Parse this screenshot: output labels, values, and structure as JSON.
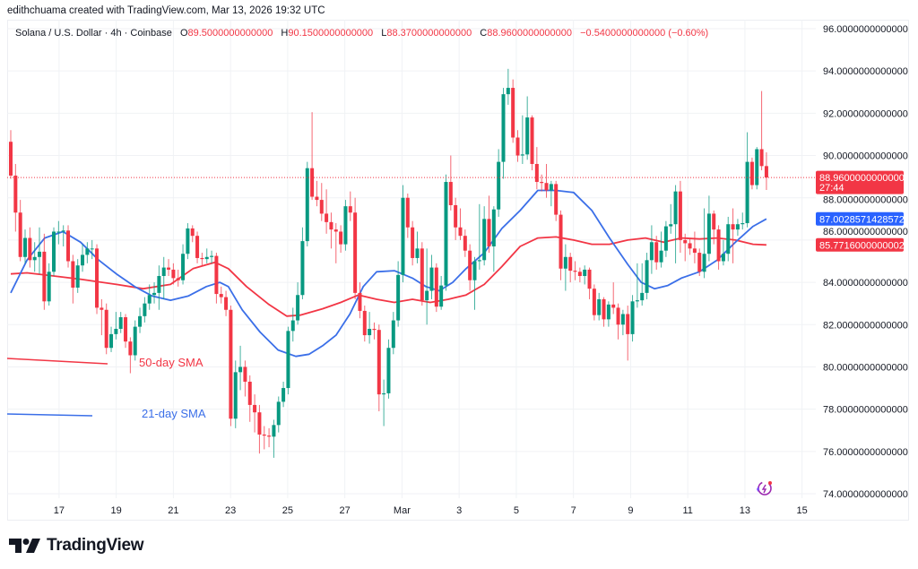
{
  "credit": "edithchuama created with TradingView.com, Mar 13, 2026 19:32 UTC",
  "legend": {
    "symbol": "Solana / U.S. Dollar · 4h · Coinbase",
    "o_label": "O",
    "o": "89.5000000000000",
    "h_label": "H",
    "h": "90.1500000000000",
    "l_label": "L",
    "l": "88.3700000000000",
    "c_label": "C",
    "c": "88.9600000000000",
    "change": "−0.5400000000000 (−0.60%)"
  },
  "brand": "TradingView",
  "colors": {
    "up": "#089981",
    "down": "#f23645",
    "sma21": "#3b6fe8",
    "sma50": "#f23645",
    "grid": "#f0f2f5"
  },
  "chart_data": {
    "type": "candlestick",
    "ylim": [
      74,
      96
    ],
    "y_ticks": [
      "96.0000000000000",
      "94.0000000000000",
      "92.0000000000000",
      "90.0000000000000",
      "88.0000000000000",
      "86.0000000000000",
      "84.0000000000000",
      "82.0000000000000",
      "80.0000000000000",
      "78.0000000000000",
      "76.0000000000000",
      "74.0000000000000"
    ],
    "y_tick_values": [
      96,
      94,
      92,
      90,
      88,
      86,
      84,
      82,
      80,
      78,
      76,
      74
    ],
    "x_ticks": [
      "17",
      "19",
      "21",
      "23",
      "25",
      "27",
      "Mar",
      "3",
      "5",
      "7",
      "9",
      "11",
      "13",
      "15"
    ],
    "grid": true,
    "price_tags": [
      {
        "value": 88.96,
        "label": "88.9600000000000",
        "sub": "27:44",
        "color": "#f23645"
      },
      {
        "value": 87.0028571428572,
        "label": "87.0028571428572",
        "color": "#2962ff"
      },
      {
        "value": 85.7716000000002,
        "label": "85.7716000000002",
        "color": "#f23645"
      }
    ],
    "annotations": {
      "sma50_label": "50-day SMA",
      "sma21_label": "21-day SMA"
    },
    "candles_ohlc": [
      [
        90.65,
        91.2,
        88.9,
        89.05
      ],
      [
        89.05,
        89.6,
        86.4,
        87.3
      ],
      [
        87.3,
        87.9,
        85.0,
        85.2
      ],
      [
        85.2,
        86.5,
        84.9,
        86.1
      ],
      [
        86.1,
        86.6,
        84.7,
        85.05
      ],
      [
        85.05,
        85.9,
        84.5,
        85.2
      ],
      [
        85.2,
        86.6,
        84.4,
        85.45
      ],
      [
        85.45,
        86.3,
        82.7,
        83.1
      ],
      [
        83.1,
        84.9,
        82.9,
        84.5
      ],
      [
        84.5,
        86.6,
        84.3,
        86.4
      ],
      [
        86.4,
        86.9,
        85.8,
        86.4
      ],
      [
        86.4,
        86.7,
        85.7,
        86.45
      ],
      [
        86.45,
        86.7,
        84.7,
        85.0
      ],
      [
        85.0,
        85.3,
        83.0,
        83.75
      ],
      [
        83.75,
        85.1,
        83.5,
        84.8
      ],
      [
        84.8,
        85.8,
        84.5,
        85.3
      ],
      [
        85.3,
        85.9,
        84.9,
        85.6
      ],
      [
        85.6,
        86.0,
        85.1,
        85.6
      ],
      [
        85.6,
        85.8,
        82.5,
        82.8
      ],
      [
        82.8,
        83.2,
        81.5,
        82.7
      ],
      [
        82.7,
        83.0,
        80.6,
        80.9
      ],
      [
        80.9,
        81.9,
        80.7,
        81.55
      ],
      [
        81.55,
        82.6,
        81.3,
        81.8
      ],
      [
        81.8,
        82.6,
        81.6,
        82.35
      ],
      [
        82.35,
        82.5,
        80.9,
        81.2
      ],
      [
        81.2,
        81.4,
        79.7,
        80.55
      ],
      [
        80.55,
        82.2,
        80.3,
        81.9
      ],
      [
        81.9,
        82.8,
        81.6,
        82.4
      ],
      [
        82.4,
        83.3,
        82.1,
        83.0
      ],
      [
        83.0,
        83.9,
        82.7,
        83.4
      ],
      [
        83.4,
        84.0,
        83.0,
        83.5
      ],
      [
        83.5,
        84.8,
        82.7,
        84.3
      ],
      [
        84.3,
        85.2,
        83.2,
        84.7
      ],
      [
        84.7,
        85.1,
        84.3,
        84.6
      ],
      [
        84.6,
        84.9,
        83.9,
        84.2
      ],
      [
        84.2,
        84.6,
        83.8,
        84.1
      ],
      [
        84.1,
        85.8,
        83.9,
        85.35
      ],
      [
        85.35,
        86.8,
        85.1,
        86.55
      ],
      [
        86.55,
        86.7,
        85.9,
        86.2
      ],
      [
        86.2,
        86.4,
        84.9,
        85.15
      ],
      [
        85.15,
        85.4,
        84.8,
        85.1
      ],
      [
        85.1,
        85.6,
        84.9,
        85.2
      ],
      [
        85.2,
        85.5,
        84.9,
        85.25
      ],
      [
        85.25,
        85.4,
        83.0,
        83.45
      ],
      [
        83.45,
        83.8,
        83.0,
        83.3
      ],
      [
        83.3,
        83.6,
        82.4,
        82.7
      ],
      [
        82.7,
        82.9,
        77.2,
        77.55
      ],
      [
        77.55,
        80.3,
        77.1,
        79.75
      ],
      [
        79.75,
        81.0,
        78.9,
        80.0
      ],
      [
        80.0,
        80.3,
        78.6,
        79.3
      ],
      [
        79.3,
        79.6,
        77.4,
        78.2
      ],
      [
        78.2,
        78.7,
        76.9,
        77.85
      ],
      [
        77.85,
        78.2,
        75.9,
        76.8
      ],
      [
        76.8,
        77.2,
        76.1,
        76.75
      ],
      [
        76.75,
        77.1,
        76.2,
        76.7
      ],
      [
        76.7,
        77.5,
        75.7,
        77.25
      ],
      [
        77.25,
        78.6,
        76.9,
        78.35
      ],
      [
        78.35,
        79.3,
        78.1,
        79.0
      ],
      [
        79.0,
        81.9,
        78.7,
        81.7
      ],
      [
        81.7,
        82.8,
        81.2,
        82.2
      ],
      [
        82.2,
        84.0,
        82.0,
        83.4
      ],
      [
        83.4,
        86.6,
        83.2,
        85.95
      ],
      [
        85.95,
        89.7,
        85.7,
        89.4
      ],
      [
        89.4,
        92.05,
        87.9,
        88.05
      ],
      [
        88.05,
        88.8,
        87.6,
        87.9
      ],
      [
        87.9,
        88.7,
        86.9,
        87.25
      ],
      [
        87.25,
        88.4,
        86.3,
        86.85
      ],
      [
        86.85,
        87.3,
        85.6,
        86.5
      ],
      [
        86.5,
        86.8,
        84.9,
        86.4
      ],
      [
        86.4,
        86.7,
        85.4,
        85.8
      ],
      [
        85.8,
        87.9,
        85.5,
        87.6
      ],
      [
        87.6,
        88.3,
        86.9,
        87.3
      ],
      [
        87.3,
        88.0,
        83.2,
        83.5
      ],
      [
        83.5,
        84.0,
        82.3,
        82.65
      ],
      [
        82.65,
        82.9,
        81.2,
        81.5
      ],
      [
        81.5,
        82.6,
        81.1,
        81.8
      ],
      [
        81.8,
        82.1,
        81.3,
        81.75
      ],
      [
        81.75,
        82.0,
        77.9,
        78.7
      ],
      [
        78.7,
        79.4,
        77.2,
        78.75
      ],
      [
        78.75,
        81.3,
        78.5,
        80.9
      ],
      [
        80.9,
        82.6,
        80.6,
        82.2
      ],
      [
        82.2,
        85.0,
        81.9,
        84.35
      ],
      [
        84.35,
        88.6,
        84.0,
        88.0
      ],
      [
        88.0,
        88.2,
        86.1,
        86.6
      ],
      [
        86.6,
        86.9,
        84.8,
        85.15
      ],
      [
        85.15,
        86.4,
        84.9,
        85.6
      ],
      [
        85.6,
        85.9,
        82.9,
        83.15
      ],
      [
        83.15,
        85.6,
        82.0,
        83.6
      ],
      [
        83.6,
        85.3,
        83.2,
        84.7
      ],
      [
        84.7,
        84.9,
        82.6,
        82.85
      ],
      [
        82.85,
        84.3,
        82.7,
        83.85
      ],
      [
        83.85,
        89.1,
        83.6,
        88.75
      ],
      [
        88.75,
        90.0,
        87.4,
        87.65
      ],
      [
        87.65,
        88.0,
        86.0,
        86.6
      ],
      [
        86.6,
        87.5,
        86.0,
        86.2
      ],
      [
        86.2,
        86.5,
        85.2,
        85.5
      ],
      [
        85.5,
        85.8,
        83.6,
        84.1
      ],
      [
        84.1,
        85.2,
        82.7,
        85.0
      ],
      [
        85.0,
        87.7,
        84.6,
        85.05
      ],
      [
        85.05,
        87.6,
        84.8,
        87.0
      ],
      [
        87.0,
        88.1,
        85.4,
        85.7
      ],
      [
        85.7,
        87.6,
        84.5,
        87.45
      ],
      [
        87.45,
        90.3,
        87.1,
        89.7
      ],
      [
        89.7,
        93.2,
        88.9,
        92.9
      ],
      [
        92.9,
        94.1,
        92.4,
        93.2
      ],
      [
        93.2,
        93.6,
        90.6,
        90.85
      ],
      [
        90.85,
        91.2,
        89.7,
        90.0
      ],
      [
        90.0,
        91.9,
        89.6,
        90.05
      ],
      [
        90.05,
        92.8,
        89.8,
        91.8
      ],
      [
        91.8,
        91.9,
        89.3,
        89.6
      ],
      [
        89.6,
        90.4,
        88.4,
        88.75
      ],
      [
        88.75,
        89.1,
        88.3,
        88.7
      ],
      [
        88.7,
        89.6,
        88.0,
        88.35
      ],
      [
        88.35,
        88.8,
        87.6,
        88.65
      ],
      [
        88.65,
        88.8,
        86.9,
        87.2
      ],
      [
        87.2,
        87.4,
        84.1,
        84.65
      ],
      [
        84.65,
        85.8,
        83.6,
        85.2
      ],
      [
        85.2,
        85.4,
        84.0,
        84.55
      ],
      [
        84.55,
        85.0,
        84.1,
        84.5
      ],
      [
        84.5,
        84.7,
        84.0,
        84.3
      ],
      [
        84.3,
        84.8,
        83.9,
        84.6
      ],
      [
        84.6,
        84.7,
        83.2,
        83.7
      ],
      [
        83.7,
        83.9,
        82.2,
        82.45
      ],
      [
        82.45,
        83.5,
        82.2,
        83.2
      ],
      [
        83.2,
        83.3,
        81.9,
        82.25
      ],
      [
        82.25,
        83.1,
        81.9,
        82.95
      ],
      [
        82.95,
        84.0,
        82.5,
        82.8
      ],
      [
        82.8,
        83.0,
        81.3,
        82.0
      ],
      [
        82.0,
        82.7,
        81.5,
        82.5
      ],
      [
        82.5,
        82.9,
        80.3,
        81.55
      ],
      [
        81.55,
        83.4,
        81.2,
        83.1
      ],
      [
        83.1,
        84.9,
        82.8,
        83.15
      ],
      [
        83.15,
        84.9,
        82.9,
        83.5
      ],
      [
        83.5,
        85.4,
        83.2,
        85.05
      ],
      [
        85.05,
        86.7,
        84.4,
        85.9
      ],
      [
        85.9,
        86.2,
        84.6,
        84.95
      ],
      [
        84.95,
        86.4,
        84.7,
        85.5
      ],
      [
        85.5,
        86.9,
        85.2,
        86.65
      ],
      [
        86.65,
        87.7,
        86.3,
        86.75
      ],
      [
        86.75,
        88.6,
        84.9,
        88.3
      ],
      [
        88.3,
        88.8,
        85.4,
        86.0
      ],
      [
        86.0,
        86.3,
        85.0,
        85.85
      ],
      [
        85.85,
        86.1,
        85.3,
        85.6
      ],
      [
        85.6,
        86.4,
        84.9,
        85.4
      ],
      [
        85.4,
        85.6,
        84.3,
        84.5
      ],
      [
        84.5,
        87.5,
        84.2,
        85.35
      ],
      [
        85.35,
        88.1,
        85.0,
        87.25
      ],
      [
        87.25,
        87.4,
        85.8,
        86.5
      ],
      [
        86.5,
        86.7,
        84.6,
        85.0
      ],
      [
        85.0,
        86.0,
        84.8,
        85.35
      ],
      [
        85.35,
        87.1,
        85.0,
        86.75
      ],
      [
        86.75,
        87.5,
        84.9,
        86.5
      ],
      [
        86.5,
        87.0,
        86.2,
        86.75
      ],
      [
        86.75,
        87.3,
        86.5,
        86.8
      ],
      [
        86.8,
        91.1,
        86.6,
        89.7
      ],
      [
        89.7,
        89.9,
        88.4,
        88.6
      ],
      [
        88.6,
        90.4,
        88.4,
        90.3
      ],
      [
        90.3,
        93.05,
        89.3,
        89.5
      ],
      [
        89.5,
        90.15,
        88.37,
        88.96
      ]
    ],
    "sma21_points": [
      [
        0,
        83.5
      ],
      [
        3.4,
        85.05
      ],
      [
        7.1,
        86.1
      ],
      [
        10.9,
        86.4
      ],
      [
        14.6,
        85.9
      ],
      [
        18.4,
        85.05
      ],
      [
        22.1,
        84.4
      ],
      [
        25.9,
        83.8
      ],
      [
        29.6,
        83.35
      ],
      [
        33.4,
        83.15
      ],
      [
        37.1,
        83.35
      ],
      [
        40.9,
        83.8
      ],
      [
        43.7,
        84.0
      ],
      [
        45.5,
        83.8
      ],
      [
        48.4,
        82.7
      ],
      [
        52.1,
        81.65
      ],
      [
        55.9,
        80.8
      ],
      [
        59.6,
        80.5
      ],
      [
        62.4,
        80.6
      ],
      [
        65.2,
        81.0
      ],
      [
        68,
        81.5
      ],
      [
        70.9,
        82.5
      ],
      [
        73.7,
        83.8
      ],
      [
        76.5,
        84.5
      ],
      [
        80.2,
        84.55
      ],
      [
        84,
        84.2
      ],
      [
        86.8,
        83.8
      ],
      [
        89.6,
        83.6
      ],
      [
        92.4,
        84.0
      ],
      [
        95.2,
        84.65
      ],
      [
        99,
        85.4
      ],
      [
        102.7,
        86.55
      ],
      [
        106.5,
        87.4
      ],
      [
        110.2,
        88.35
      ],
      [
        114,
        88.35
      ],
      [
        117.7,
        88.25
      ],
      [
        121.5,
        87.4
      ],
      [
        125.2,
        86.1
      ],
      [
        129,
        84.85
      ],
      [
        131.8,
        84.0
      ],
      [
        134.6,
        83.7
      ],
      [
        137.4,
        83.85
      ],
      [
        140.2,
        84.2
      ],
      [
        144,
        84.5
      ],
      [
        147.7,
        85.05
      ],
      [
        151.5,
        85.9
      ],
      [
        155.2,
        86.65
      ],
      [
        158,
        87.0
      ]
    ],
    "sma50_points": [
      [
        0,
        84.4
      ],
      [
        3.4,
        84.45
      ],
      [
        9,
        84.3
      ],
      [
        14.6,
        84.15
      ],
      [
        22.1,
        83.9
      ],
      [
        27.7,
        83.7
      ],
      [
        33.4,
        83.9
      ],
      [
        38.1,
        84.65
      ],
      [
        42.7,
        84.95
      ],
      [
        45.5,
        84.65
      ],
      [
        49.3,
        83.8
      ],
      [
        54,
        82.95
      ],
      [
        57.7,
        82.4
      ],
      [
        60.5,
        82.45
      ],
      [
        65.2,
        82.75
      ],
      [
        69,
        83.05
      ],
      [
        72.7,
        83.4
      ],
      [
        76.5,
        83.2
      ],
      [
        80.2,
        83.05
      ],
      [
        84,
        83.2
      ],
      [
        87.7,
        83.05
      ],
      [
        91.5,
        83.2
      ],
      [
        95.2,
        83.4
      ],
      [
        99,
        83.9
      ],
      [
        102.7,
        84.75
      ],
      [
        106.5,
        85.7
      ],
      [
        110.2,
        86.1
      ],
      [
        114,
        86.15
      ],
      [
        117.7,
        86.0
      ],
      [
        121.5,
        85.8
      ],
      [
        125.2,
        85.8
      ],
      [
        129,
        86.0
      ],
      [
        132.7,
        86.1
      ],
      [
        136.5,
        85.9
      ],
      [
        140.2,
        86.1
      ],
      [
        144,
        86.05
      ],
      [
        147.7,
        86.1
      ],
      [
        151.5,
        86.0
      ],
      [
        155.2,
        85.8
      ],
      [
        158,
        85.77
      ]
    ]
  }
}
